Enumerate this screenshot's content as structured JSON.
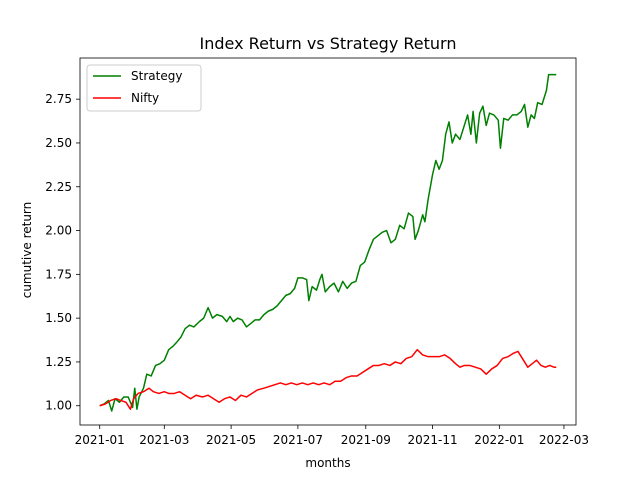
{
  "chart_data": {
    "type": "line",
    "title": "Index Return vs Strategy Return",
    "xlabel": "months",
    "ylabel": "cumutive return",
    "x_start": "2021-01-01",
    "x_end": "2022-03-01",
    "xlim": [
      "2020-12-14",
      "2022-03-12"
    ],
    "ylim": [
      0.89,
      2.985
    ],
    "x_ticks": [
      {
        "label": "2021-01",
        "date": "2021-01-01"
      },
      {
        "label": "2021-03",
        "date": "2021-03-01"
      },
      {
        "label": "2021-05",
        "date": "2021-05-01"
      },
      {
        "label": "2021-07",
        "date": "2021-07-01"
      },
      {
        "label": "2021-09",
        "date": "2021-09-01"
      },
      {
        "label": "2021-11",
        "date": "2021-11-01"
      },
      {
        "label": "2022-01",
        "date": "2022-01-01"
      },
      {
        "label": "2022-03",
        "date": "2022-03-01"
      }
    ],
    "y_ticks": [
      {
        "label": "1.00",
        "value": 1.0
      },
      {
        "label": "1.25",
        "value": 1.25
      },
      {
        "label": "1.50",
        "value": 1.5
      },
      {
        "label": "1.75",
        "value": 1.75
      },
      {
        "label": "2.00",
        "value": 2.0
      },
      {
        "label": "2.25",
        "value": 2.25
      },
      {
        "label": "2.50",
        "value": 2.5
      },
      {
        "label": "2.75",
        "value": 2.75
      }
    ],
    "grid": false,
    "legend_position": "top-left",
    "series": [
      {
        "name": "Strategy",
        "color": "#008000",
        "points": [
          [
            "2021-01-01",
            1.0
          ],
          [
            "2021-01-05",
            1.01
          ],
          [
            "2021-01-09",
            1.03
          ],
          [
            "2021-01-12",
            0.97
          ],
          [
            "2021-01-15",
            1.04
          ],
          [
            "2021-01-19",
            1.02
          ],
          [
            "2021-01-23",
            1.05
          ],
          [
            "2021-01-27",
            1.05
          ],
          [
            "2021-01-31",
            0.99
          ],
          [
            "2021-02-02",
            1.1
          ],
          [
            "2021-02-04",
            0.98
          ],
          [
            "2021-02-06",
            1.05
          ],
          [
            "2021-02-10",
            1.1
          ],
          [
            "2021-02-13",
            1.18
          ],
          [
            "2021-02-17",
            1.17
          ],
          [
            "2021-02-21",
            1.23
          ],
          [
            "2021-02-25",
            1.24
          ],
          [
            "2021-03-01",
            1.26
          ],
          [
            "2021-03-05",
            1.32
          ],
          [
            "2021-03-09",
            1.34
          ],
          [
            "2021-03-12",
            1.36
          ],
          [
            "2021-03-16",
            1.39
          ],
          [
            "2021-03-20",
            1.44
          ],
          [
            "2021-03-24",
            1.46
          ],
          [
            "2021-03-28",
            1.45
          ],
          [
            "2021-04-02",
            1.48
          ],
          [
            "2021-04-06",
            1.5
          ],
          [
            "2021-04-10",
            1.56
          ],
          [
            "2021-04-14",
            1.5
          ],
          [
            "2021-04-18",
            1.52
          ],
          [
            "2021-04-23",
            1.51
          ],
          [
            "2021-04-27",
            1.48
          ],
          [
            "2021-04-30",
            1.51
          ],
          [
            "2021-05-03",
            1.48
          ],
          [
            "2021-05-07",
            1.5
          ],
          [
            "2021-05-11",
            1.49
          ],
          [
            "2021-05-15",
            1.45
          ],
          [
            "2021-05-19",
            1.47
          ],
          [
            "2021-05-23",
            1.49
          ],
          [
            "2021-05-27",
            1.49
          ],
          [
            "2021-05-31",
            1.52
          ],
          [
            "2021-06-04",
            1.54
          ],
          [
            "2021-06-08",
            1.55
          ],
          [
            "2021-06-12",
            1.57
          ],
          [
            "2021-06-16",
            1.6
          ],
          [
            "2021-06-20",
            1.63
          ],
          [
            "2021-06-24",
            1.64
          ],
          [
            "2021-06-28",
            1.67
          ],
          [
            "2021-07-01",
            1.73
          ],
          [
            "2021-07-05",
            1.73
          ],
          [
            "2021-07-09",
            1.72
          ],
          [
            "2021-07-11",
            1.6
          ],
          [
            "2021-07-14",
            1.68
          ],
          [
            "2021-07-18",
            1.66
          ],
          [
            "2021-07-21",
            1.72
          ],
          [
            "2021-07-23",
            1.75
          ],
          [
            "2021-07-26",
            1.65
          ],
          [
            "2021-07-30",
            1.68
          ],
          [
            "2021-08-03",
            1.7
          ],
          [
            "2021-08-07",
            1.65
          ],
          [
            "2021-08-11",
            1.71
          ],
          [
            "2021-08-15",
            1.67
          ],
          [
            "2021-08-19",
            1.7
          ],
          [
            "2021-08-23",
            1.71
          ],
          [
            "2021-08-27",
            1.8
          ],
          [
            "2021-08-31",
            1.82
          ],
          [
            "2021-09-04",
            1.89
          ],
          [
            "2021-09-08",
            1.95
          ],
          [
            "2021-09-12",
            1.97
          ],
          [
            "2021-09-16",
            1.99
          ],
          [
            "2021-09-20",
            2.0
          ],
          [
            "2021-09-24",
            1.93
          ],
          [
            "2021-09-28",
            1.95
          ],
          [
            "2021-10-02",
            2.03
          ],
          [
            "2021-10-06",
            2.01
          ],
          [
            "2021-10-10",
            2.1
          ],
          [
            "2021-10-14",
            2.08
          ],
          [
            "2021-10-16",
            1.95
          ],
          [
            "2021-10-19",
            2.0
          ],
          [
            "2021-10-23",
            2.09
          ],
          [
            "2021-10-25",
            2.05
          ],
          [
            "2021-10-28",
            2.18
          ],
          [
            "2021-11-01",
            2.32
          ],
          [
            "2021-11-04",
            2.4
          ],
          [
            "2021-11-07",
            2.35
          ],
          [
            "2021-11-10",
            2.4
          ],
          [
            "2021-11-13",
            2.55
          ],
          [
            "2021-11-16",
            2.62
          ],
          [
            "2021-11-19",
            2.5
          ],
          [
            "2021-11-22",
            2.55
          ],
          [
            "2021-11-26",
            2.52
          ],
          [
            "2021-11-30",
            2.6
          ],
          [
            "2021-12-03",
            2.66
          ],
          [
            "2021-12-06",
            2.55
          ],
          [
            "2021-12-08",
            2.68
          ],
          [
            "2021-12-11",
            2.5
          ],
          [
            "2021-12-14",
            2.67
          ],
          [
            "2021-12-17",
            2.71
          ],
          [
            "2021-12-20",
            2.6
          ],
          [
            "2021-12-23",
            2.67
          ],
          [
            "2021-12-27",
            2.66
          ],
          [
            "2021-12-31",
            2.63
          ],
          [
            "2022-01-02",
            2.47
          ],
          [
            "2022-01-05",
            2.64
          ],
          [
            "2022-01-09",
            2.63
          ],
          [
            "2022-01-13",
            2.66
          ],
          [
            "2022-01-17",
            2.66
          ],
          [
            "2022-01-21",
            2.68
          ],
          [
            "2022-01-24",
            2.72
          ],
          [
            "2022-01-27",
            2.59
          ],
          [
            "2022-01-30",
            2.66
          ],
          [
            "2022-02-02",
            2.64
          ],
          [
            "2022-02-05",
            2.73
          ],
          [
            "2022-02-09",
            2.72
          ],
          [
            "2022-02-13",
            2.8
          ],
          [
            "2022-02-15",
            2.89
          ],
          [
            "2022-02-18",
            2.89
          ],
          [
            "2022-02-22",
            2.89
          ]
        ]
      },
      {
        "name": "Nifty",
        "color": "#ff0000",
        "points": [
          [
            "2021-01-01",
            1.0
          ],
          [
            "2021-01-06",
            1.01
          ],
          [
            "2021-01-11",
            1.03
          ],
          [
            "2021-01-16",
            1.04
          ],
          [
            "2021-01-20",
            1.03
          ],
          [
            "2021-01-25",
            1.02
          ],
          [
            "2021-01-29",
            0.98
          ],
          [
            "2021-02-01",
            1.04
          ],
          [
            "2021-02-05",
            1.07
          ],
          [
            "2021-02-10",
            1.08
          ],
          [
            "2021-02-15",
            1.1
          ],
          [
            "2021-02-19",
            1.08
          ],
          [
            "2021-02-24",
            1.07
          ],
          [
            "2021-03-01",
            1.08
          ],
          [
            "2021-03-05",
            1.07
          ],
          [
            "2021-03-10",
            1.07
          ],
          [
            "2021-03-15",
            1.08
          ],
          [
            "2021-03-20",
            1.06
          ],
          [
            "2021-03-25",
            1.04
          ],
          [
            "2021-03-30",
            1.06
          ],
          [
            "2021-04-05",
            1.05
          ],
          [
            "2021-04-10",
            1.06
          ],
          [
            "2021-04-15",
            1.04
          ],
          [
            "2021-04-20",
            1.02
          ],
          [
            "2021-04-25",
            1.04
          ],
          [
            "2021-04-30",
            1.05
          ],
          [
            "2021-05-05",
            1.03
          ],
          [
            "2021-05-10",
            1.06
          ],
          [
            "2021-05-15",
            1.05
          ],
          [
            "2021-05-20",
            1.07
          ],
          [
            "2021-05-25",
            1.09
          ],
          [
            "2021-05-31",
            1.1
          ],
          [
            "2021-06-05",
            1.11
          ],
          [
            "2021-06-10",
            1.12
          ],
          [
            "2021-06-15",
            1.13
          ],
          [
            "2021-06-20",
            1.12
          ],
          [
            "2021-06-25",
            1.13
          ],
          [
            "2021-06-30",
            1.12
          ],
          [
            "2021-07-05",
            1.13
          ],
          [
            "2021-07-10",
            1.12
          ],
          [
            "2021-07-15",
            1.13
          ],
          [
            "2021-07-20",
            1.12
          ],
          [
            "2021-07-25",
            1.13
          ],
          [
            "2021-07-30",
            1.12
          ],
          [
            "2021-08-04",
            1.14
          ],
          [
            "2021-08-09",
            1.14
          ],
          [
            "2021-08-14",
            1.16
          ],
          [
            "2021-08-19",
            1.17
          ],
          [
            "2021-08-24",
            1.17
          ],
          [
            "2021-08-29",
            1.19
          ],
          [
            "2021-09-03",
            1.21
          ],
          [
            "2021-09-08",
            1.23
          ],
          [
            "2021-09-13",
            1.23
          ],
          [
            "2021-09-18",
            1.24
          ],
          [
            "2021-09-23",
            1.23
          ],
          [
            "2021-09-28",
            1.25
          ],
          [
            "2021-10-03",
            1.24
          ],
          [
            "2021-10-08",
            1.27
          ],
          [
            "2021-10-13",
            1.28
          ],
          [
            "2021-10-18",
            1.32
          ],
          [
            "2021-10-23",
            1.29
          ],
          [
            "2021-10-28",
            1.28
          ],
          [
            "2021-11-02",
            1.28
          ],
          [
            "2021-11-07",
            1.28
          ],
          [
            "2021-11-12",
            1.29
          ],
          [
            "2021-11-17",
            1.27
          ],
          [
            "2021-11-22",
            1.24
          ],
          [
            "2021-11-26",
            1.22
          ],
          [
            "2021-11-30",
            1.23
          ],
          [
            "2021-12-05",
            1.23
          ],
          [
            "2021-12-10",
            1.22
          ],
          [
            "2021-12-15",
            1.21
          ],
          [
            "2021-12-20",
            1.18
          ],
          [
            "2021-12-25",
            1.21
          ],
          [
            "2021-12-30",
            1.23
          ],
          [
            "2022-01-04",
            1.27
          ],
          [
            "2022-01-09",
            1.28
          ],
          [
            "2022-01-14",
            1.3
          ],
          [
            "2022-01-18",
            1.31
          ],
          [
            "2022-01-23",
            1.26
          ],
          [
            "2022-01-27",
            1.22
          ],
          [
            "2022-01-31",
            1.24
          ],
          [
            "2022-02-04",
            1.26
          ],
          [
            "2022-02-08",
            1.23
          ],
          [
            "2022-02-12",
            1.22
          ],
          [
            "2022-02-16",
            1.23
          ],
          [
            "2022-02-20",
            1.22
          ],
          [
            "2022-02-22",
            1.22
          ]
        ]
      }
    ]
  }
}
